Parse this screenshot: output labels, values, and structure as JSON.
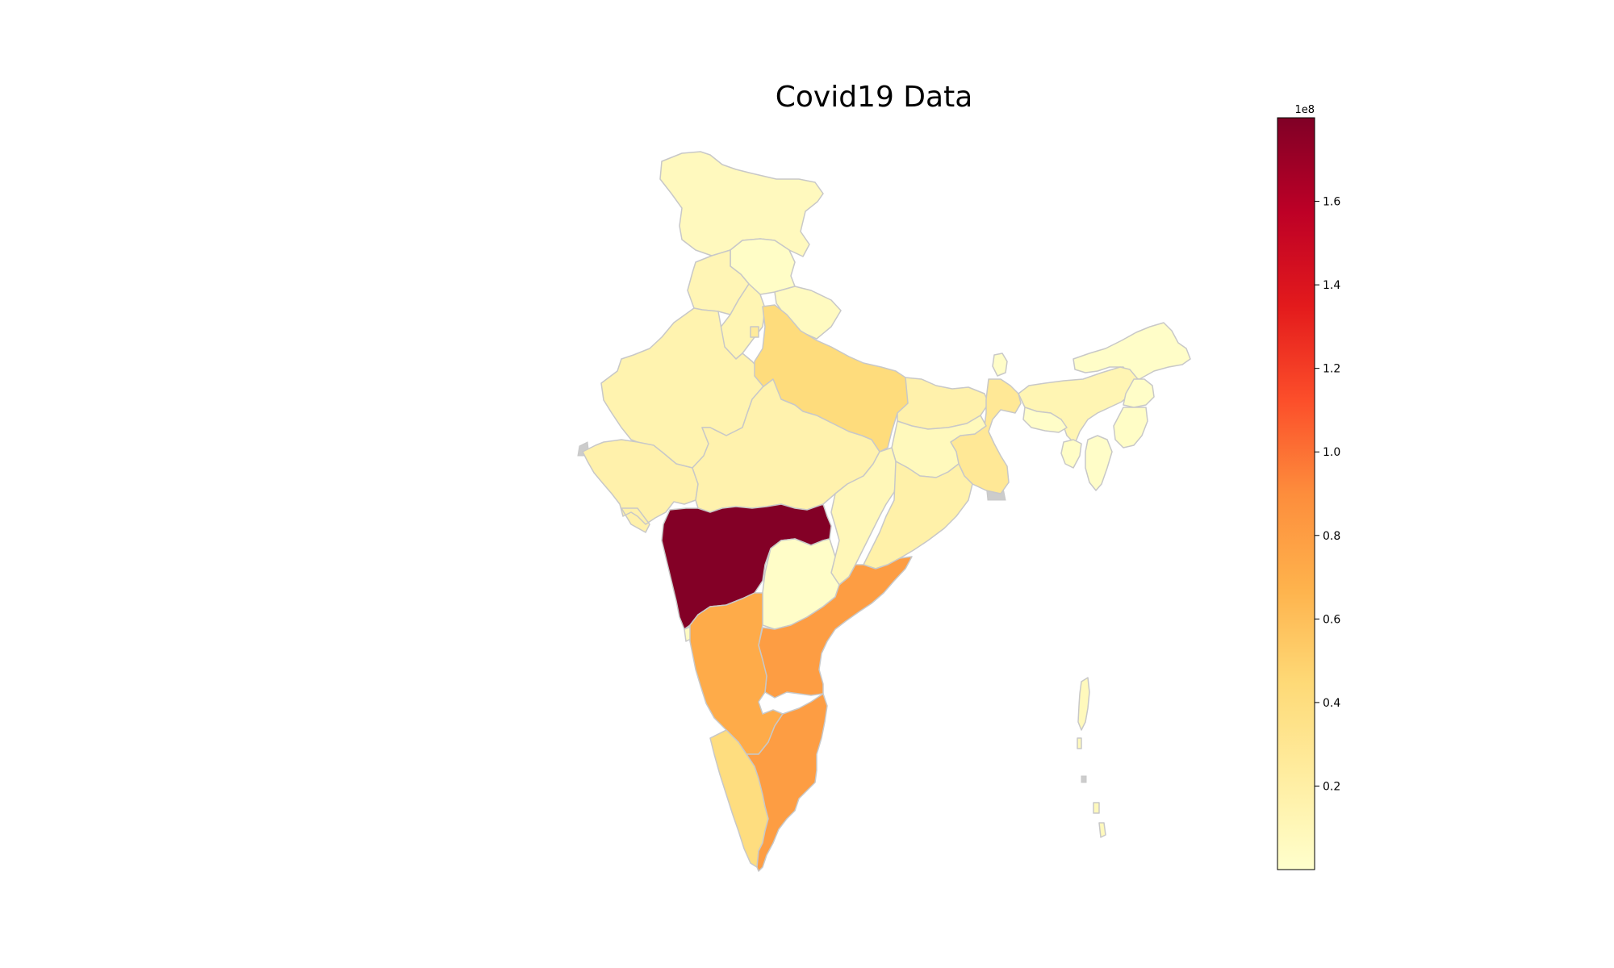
{
  "title": "Covid19 Data",
  "colorbar": {
    "exponent_label": "1e8",
    "min": 0,
    "max": 1.8,
    "ticks": [
      0.2,
      0.4,
      0.6,
      0.8,
      1.0,
      1.2,
      1.4,
      1.6
    ],
    "tick_labels": [
      "0.2",
      "0.4",
      "0.6",
      "0.8",
      "1.0",
      "1.2",
      "1.4",
      "1.6"
    ],
    "colormap": "YlOrRd",
    "stops": [
      "#ffffcc",
      "#ffeda0",
      "#fed976",
      "#feb24c",
      "#fd8d3c",
      "#fc4e2a",
      "#e31a1c",
      "#bd0026",
      "#800026"
    ]
  },
  "chart_data": {
    "type": "choropleth",
    "title": "Covid19 Data",
    "scale_factor": "1e8",
    "vmin": 0,
    "vmax": 1.8,
    "regions": [
      {
        "id": "jammu-kashmir",
        "value": 0.07
      },
      {
        "id": "himachal-pradesh",
        "value": 0.03
      },
      {
        "id": "punjab",
        "value": 0.12
      },
      {
        "id": "uttarakhand",
        "value": 0.06
      },
      {
        "id": "haryana",
        "value": 0.13
      },
      {
        "id": "delhi",
        "value": 0.25
      },
      {
        "id": "rajasthan",
        "value": 0.15
      },
      {
        "id": "uttar-pradesh",
        "value": 0.42
      },
      {
        "id": "bihar",
        "value": 0.17
      },
      {
        "id": "sikkim",
        "value": 0.02
      },
      {
        "id": "arunachal-pradesh",
        "value": 0.02
      },
      {
        "id": "assam",
        "value": 0.13
      },
      {
        "id": "nagaland",
        "value": 0.02
      },
      {
        "id": "manipur",
        "value": 0.03
      },
      {
        "id": "mizoram",
        "value": 0.02
      },
      {
        "id": "tripura",
        "value": 0.03
      },
      {
        "id": "meghalaya",
        "value": 0.02
      },
      {
        "id": "west-bengal",
        "value": 0.28
      },
      {
        "id": "jharkhand",
        "value": 0.08
      },
      {
        "id": "odisha",
        "value": 0.18
      },
      {
        "id": "chhattisgarh",
        "value": 0.1
      },
      {
        "id": "madhya-pradesh",
        "value": 0.16
      },
      {
        "id": "gujarat",
        "value": 0.17
      },
      {
        "id": "maharashtra",
        "value": 1.79
      },
      {
        "id": "telangana",
        "value": 0.02
      },
      {
        "id": "andhra-pradesh",
        "value": 0.8
      },
      {
        "id": "karnataka",
        "value": 0.72
      },
      {
        "id": "goa",
        "value": 0.05
      },
      {
        "id": "kerala",
        "value": 0.4
      },
      {
        "id": "tamil-nadu",
        "value": 0.8
      },
      {
        "id": "andaman-nicobar",
        "value": 0.08
      }
    ]
  }
}
